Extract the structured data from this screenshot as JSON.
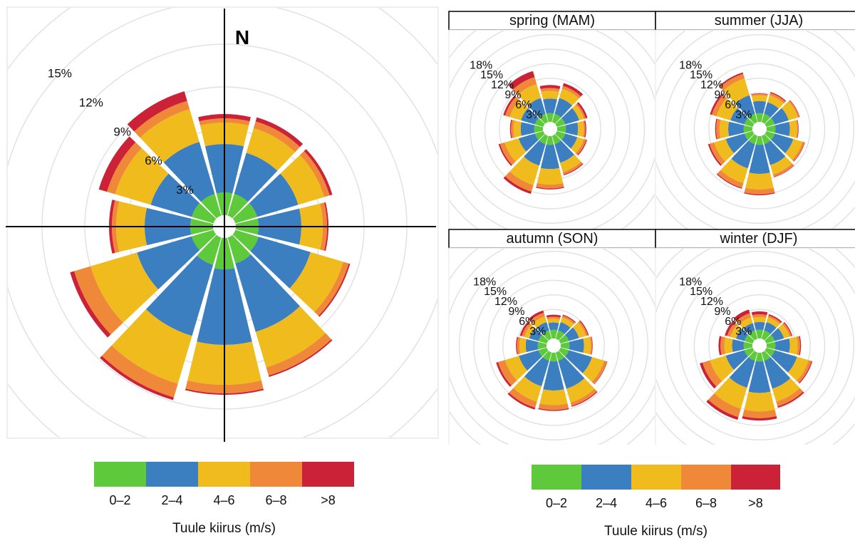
{
  "speed_bins": [
    {
      "label": "0–2",
      "color": "#5ec93a"
    },
    {
      "label": "2–4",
      "color": "#3b7fc0"
    },
    {
      "label": "4–6",
      "color": "#f0bb1c"
    },
    {
      "label": "6–8",
      "color": "#f0883a"
    },
    {
      "label": ">8",
      "color": "#cc2237"
    }
  ],
  "legend_title": "Tuule kiirus (m/s)",
  "north_label": "N",
  "chart_data": [
    {
      "type": "polar-stacked-bar",
      "subtitle": "",
      "directions_deg": [
        0,
        30,
        60,
        90,
        120,
        150,
        180,
        210,
        240,
        270,
        300,
        330
      ],
      "bins": [
        "0–2",
        "2–4",
        "4–6",
        "6–8",
        ">8"
      ],
      "radial_ticks": [
        "3%",
        "6%",
        "9%",
        "12%",
        "15%"
      ],
      "rmax_pct": 15,
      "values": [
        [
          1.6,
          3.4,
          1.5,
          0.3,
          0.3
        ],
        [
          1.6,
          3.0,
          1.8,
          0.5,
          0.3
        ],
        [
          1.6,
          3.0,
          1.9,
          0.4,
          0.2
        ],
        [
          1.6,
          3.0,
          1.5,
          0.3,
          0.1
        ],
        [
          1.7,
          3.8,
          2.4,
          0.4,
          0.1
        ],
        [
          1.9,
          5.0,
          2.6,
          0.6,
          0.1
        ],
        [
          2.2,
          5.3,
          2.8,
          0.6,
          0.1
        ],
        [
          2.0,
          5.2,
          3.5,
          1.0,
          0.2
        ],
        [
          1.6,
          4.0,
          3.4,
          1.2,
          0.3
        ],
        [
          1.6,
          3.2,
          2.0,
          0.3,
          0.2
        ],
        [
          1.6,
          3.0,
          2.6,
          0.6,
          0.6
        ],
        [
          1.6,
          3.8,
          2.4,
          0.6,
          0.7
        ]
      ]
    },
    {
      "type": "polar-stacked-bar",
      "subtitle": "spring (MAM)",
      "directions_deg": [
        0,
        30,
        60,
        90,
        120,
        150,
        180,
        210,
        240,
        270,
        300,
        330
      ],
      "bins": [
        "0–2",
        "2–4",
        "4–6",
        "6–8",
        ">8"
      ],
      "radial_ticks": [
        "3%",
        "6%",
        "9%",
        "12%",
        "15%",
        "18%"
      ],
      "rmax_pct": 18,
      "values": [
        [
          1.8,
          3.0,
          1.6,
          0.6,
          0.6
        ],
        [
          1.8,
          3.4,
          2.0,
          0.6,
          0.6
        ],
        [
          1.8,
          3.0,
          1.0,
          0.4,
          0.4
        ],
        [
          1.8,
          2.5,
          1.2,
          0.3,
          0.2
        ],
        [
          1.8,
          2.6,
          1.4,
          0.5,
          0.2
        ],
        [
          1.8,
          4.0,
          2.0,
          0.5,
          0.2
        ],
        [
          1.8,
          5.0,
          3.2,
          0.8,
          0.2
        ],
        [
          1.8,
          4.6,
          4.2,
          1.4,
          0.5
        ],
        [
          1.8,
          3.5,
          3.0,
          1.0,
          0.3
        ],
        [
          1.8,
          2.8,
          1.5,
          0.5,
          0.2
        ],
        [
          1.8,
          3.0,
          2.4,
          1.0,
          0.4
        ],
        [
          1.8,
          3.4,
          3.0,
          1.5,
          1.3
        ]
      ]
    },
    {
      "type": "polar-stacked-bar",
      "subtitle": "summer (JJA)",
      "directions_deg": [
        0,
        30,
        60,
        90,
        120,
        150,
        180,
        210,
        240,
        270,
        300,
        330
      ],
      "bins": [
        "0–2",
        "2–4",
        "4–6",
        "6–8",
        ">8"
      ],
      "radial_ticks": [
        "3%",
        "6%",
        "9%",
        "12%",
        "15%",
        "18%"
      ],
      "rmax_pct": 18,
      "values": [
        [
          1.8,
          2.5,
          1.2,
          0.3,
          0.1
        ],
        [
          1.8,
          2.5,
          1.5,
          0.5,
          0.2
        ],
        [
          1.8,
          3.0,
          2.0,
          0.3,
          0.1
        ],
        [
          1.8,
          3.0,
          1.5,
          0.2,
          0.1
        ],
        [
          1.8,
          4.0,
          2.0,
          0.4,
          0.1
        ],
        [
          1.8,
          4.5,
          2.0,
          0.5,
          0.1
        ],
        [
          1.8,
          6.0,
          3.2,
          1.0,
          0.2
        ],
        [
          1.8,
          5.2,
          3.2,
          1.0,
          0.2
        ],
        [
          1.8,
          4.0,
          2.5,
          1.0,
          0.3
        ],
        [
          1.8,
          3.2,
          1.8,
          0.7,
          0.2
        ],
        [
          1.8,
          3.0,
          3.0,
          1.0,
          0.4
        ],
        [
          1.8,
          4.0,
          3.6,
          1.0,
          0.3
        ]
      ]
    },
    {
      "type": "polar-stacked-bar",
      "subtitle": "autumn (SON)",
      "directions_deg": [
        0,
        30,
        60,
        90,
        120,
        150,
        180,
        210,
        240,
        270,
        300,
        330
      ],
      "bins": [
        "0–2",
        "2–4",
        "4–6",
        "6–8",
        ">8"
      ],
      "radial_ticks": [
        "3%",
        "6%",
        "9%",
        "12%",
        "15%",
        "18%"
      ],
      "rmax_pct": 18,
      "values": [
        [
          1.8,
          1.5,
          0.8,
          0.4,
          0.4
        ],
        [
          1.8,
          1.8,
          1.0,
          0.4,
          0.2
        ],
        [
          1.8,
          2.2,
          1.5,
          0.4,
          0.2
        ],
        [
          1.8,
          3.0,
          1.4,
          0.3,
          0.1
        ],
        [
          1.8,
          5.0,
          2.6,
          0.6,
          0.1
        ],
        [
          1.8,
          6.0,
          3.0,
          0.7,
          0.2
        ],
        [
          1.8,
          6.0,
          3.0,
          1.0,
          0.2
        ],
        [
          1.8,
          5.5,
          3.3,
          1.3,
          0.4
        ],
        [
          1.8,
          4.2,
          3.0,
          1.5,
          0.4
        ],
        [
          1.8,
          2.5,
          1.3,
          0.5,
          0.2
        ],
        [
          1.8,
          2.0,
          1.0,
          0.6,
          0.4
        ],
        [
          1.8,
          1.8,
          1.2,
          0.8,
          0.5
        ]
      ]
    },
    {
      "type": "polar-stacked-bar",
      "subtitle": "winter (DJF)",
      "directions_deg": [
        0,
        30,
        60,
        90,
        120,
        150,
        180,
        210,
        240,
        270,
        300,
        330
      ],
      "bins": [
        "0–2",
        "2–4",
        "4–6",
        "6–8",
        ">8"
      ],
      "radial_ticks": [
        "3%",
        "6%",
        "9%",
        "12%",
        "15%",
        "18%"
      ],
      "rmax_pct": 18,
      "values": [
        [
          1.8,
          1.6,
          1.0,
          0.6,
          0.6
        ],
        [
          1.8,
          1.8,
          1.0,
          0.4,
          0.3
        ],
        [
          1.8,
          2.0,
          1.2,
          0.4,
          0.2
        ],
        [
          1.8,
          3.0,
          1.6,
          0.5,
          0.2
        ],
        [
          1.8,
          4.8,
          2.5,
          0.6,
          0.2
        ],
        [
          1.8,
          6.0,
          2.8,
          1.0,
          0.3
        ],
        [
          1.8,
          6.5,
          3.8,
          1.4,
          0.5
        ],
        [
          1.8,
          5.8,
          4.5,
          1.8,
          0.6
        ],
        [
          1.8,
          4.0,
          3.4,
          1.6,
          0.6
        ],
        [
          1.8,
          2.4,
          1.6,
          0.8,
          0.4
        ],
        [
          1.8,
          1.8,
          1.2,
          0.7,
          0.5
        ],
        [
          1.8,
          1.6,
          1.2,
          0.9,
          0.8
        ]
      ]
    }
  ]
}
